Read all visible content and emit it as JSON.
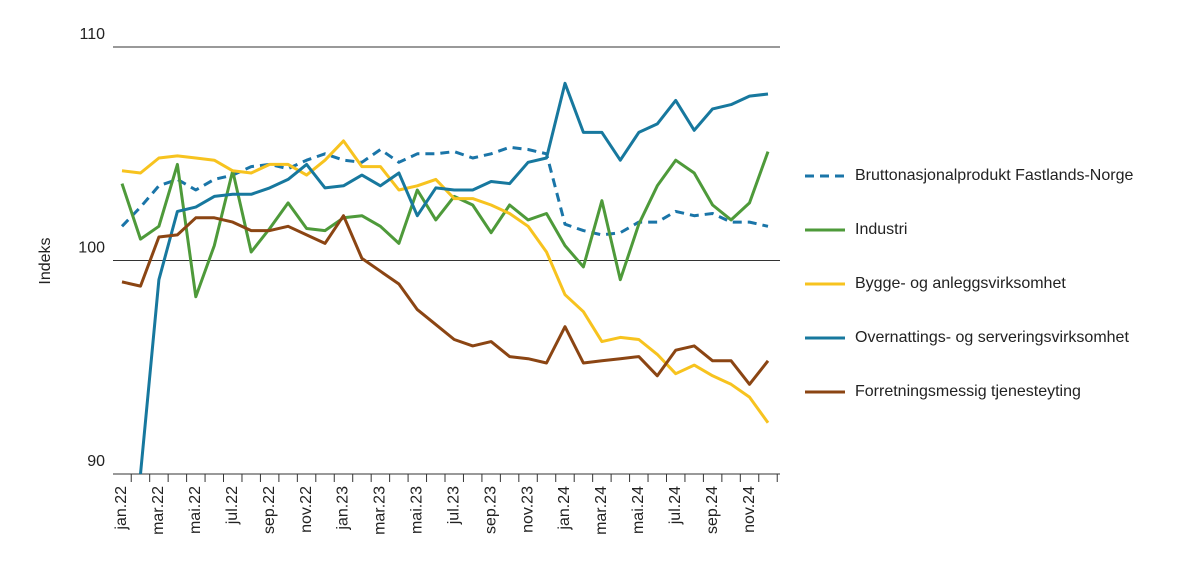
{
  "chart_data": {
    "type": "line",
    "y_label": "Indeks",
    "categories": [
      "jan.22",
      null,
      "mar.22",
      null,
      "mai.22",
      null,
      "jul.22",
      null,
      "sep.22",
      null,
      "nov.22",
      null,
      "jan.23",
      null,
      "mar.23",
      null,
      "mai.23",
      null,
      "jul.23",
      null,
      "sep.23",
      null,
      "nov.23",
      null,
      "jan.24",
      null,
      "mar.24",
      null,
      "mai.24",
      null,
      "jul.24",
      null,
      "sep.24",
      null,
      "nov.24",
      null
    ],
    "ylim": [
      90,
      110
    ],
    "yticks": [
      90,
      100,
      110
    ],
    "grid": true,
    "legend": "right",
    "series": [
      {
        "name": "Bruttonasjonalprodukt Fastlands-Norge",
        "color": "#1a75a8",
        "dashed": true,
        "values": [
          101.6,
          102.5,
          103.5,
          103.8,
          103.3,
          103.8,
          104.0,
          104.4,
          104.5,
          104.3,
          104.7,
          105.0,
          104.7,
          104.6,
          105.2,
          104.6,
          105.0,
          105.0,
          105.1,
          104.8,
          105.0,
          105.3,
          105.2,
          105.0,
          101.7,
          101.4,
          101.2,
          101.3,
          101.8,
          101.8,
          102.3,
          102.1,
          102.2,
          101.8,
          101.8,
          101.6
        ]
      },
      {
        "name": "Industri",
        "color": "#4e9a3a",
        "dashed": false,
        "values": [
          103.6,
          101.0,
          101.6,
          104.5,
          98.3,
          100.7,
          104.2,
          100.4,
          101.5,
          102.7,
          101.5,
          101.4,
          102.0,
          102.1,
          101.6,
          100.8,
          103.3,
          101.9,
          103.0,
          102.6,
          101.3,
          102.6,
          101.9,
          102.2,
          100.7,
          99.7,
          102.8,
          99.1,
          101.7,
          103.5,
          104.7,
          104.1,
          102.6,
          101.9,
          102.7,
          105.1
        ]
      },
      {
        "name": "Bygge- og anleggsvirksomhet",
        "color": "#f7c31f",
        "dashed": false,
        "values": [
          104.2,
          104.1,
          104.8,
          104.9,
          104.8,
          104.7,
          104.2,
          104.1,
          104.5,
          104.5,
          104.0,
          104.7,
          105.6,
          104.4,
          104.4,
          103.3,
          103.5,
          103.8,
          102.9,
          102.9,
          102.6,
          102.2,
          101.6,
          100.4,
          98.4,
          97.6,
          96.2,
          96.4,
          96.3,
          95.6,
          94.7,
          95.1,
          94.6,
          94.2,
          93.6,
          92.4
        ]
      },
      {
        "name": "Overnattings- og serveringsvirksomhet",
        "color": "#17789e",
        "dashed": false,
        "values": [
          null,
          90,
          99.1,
          102.3,
          102.5,
          103.0,
          103.1,
          103.1,
          103.4,
          103.8,
          104.5,
          103.4,
          103.5,
          104.0,
          103.5,
          104.1,
          102.1,
          103.4,
          103.3,
          103.3,
          103.7,
          103.6,
          104.6,
          104.8,
          108.3,
          106.0,
          106.0,
          104.7,
          106.0,
          106.4,
          107.5,
          106.1,
          107.1,
          107.3,
          107.7,
          107.8
        ]
      },
      {
        "name": "Forretningsmessig tjenesteyting",
        "color": "#8b4513",
        "dashed": false,
        "values": [
          99.0,
          98.8,
          101.1,
          101.2,
          102.0,
          102.0,
          101.8,
          101.4,
          101.4,
          101.6,
          101.2,
          100.8,
          102.1,
          100.1,
          99.5,
          98.9,
          97.7,
          97.0,
          96.3,
          96.0,
          96.2,
          95.5,
          95.4,
          95.2,
          96.9,
          95.2,
          95.3,
          95.4,
          95.5,
          94.6,
          95.8,
          96.0,
          95.3,
          95.3,
          94.2,
          95.3
        ]
      }
    ]
  }
}
